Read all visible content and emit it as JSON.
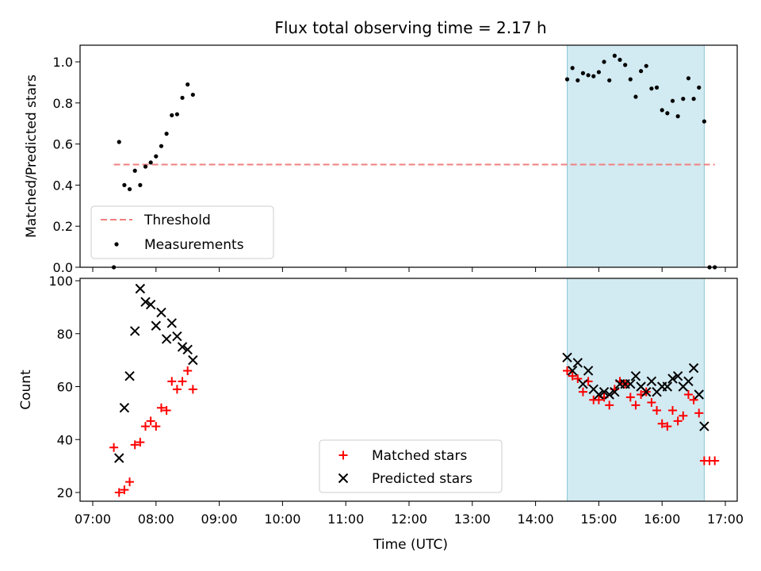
{
  "chart_data": [
    {
      "type": "scatter",
      "title": "Flux total observing time = 2.17 h",
      "ylabel": "Matched/Predicted stars",
      "xlabel": "",
      "xlim": [
        "07:00",
        "17:00"
      ],
      "ylim": [
        0,
        1.08
      ],
      "yticks": [
        "0.0",
        "0.2",
        "0.4",
        "0.6",
        "0.8",
        "1.0"
      ],
      "shaded_region": [
        "14:30",
        "16:40"
      ],
      "threshold": {
        "name": "Threshold",
        "value": 0.5,
        "x_range": [
          "07:20",
          "16:50"
        ],
        "color": "#f08080"
      },
      "series": [
        {
          "name": "Measurements",
          "color": "#000000",
          "points": [
            [
              "07:20",
              0.0
            ],
            [
              "07:25",
              0.61
            ],
            [
              "07:30",
              0.4
            ],
            [
              "07:35",
              0.38
            ],
            [
              "07:40",
              0.47
            ],
            [
              "07:45",
              0.4
            ],
            [
              "07:50",
              0.49
            ],
            [
              "07:55",
              0.51
            ],
            [
              "08:00",
              0.54
            ],
            [
              "08:05",
              0.59
            ],
            [
              "08:10",
              0.65
            ],
            [
              "08:15",
              0.74
            ],
            [
              "08:20",
              0.745
            ],
            [
              "08:25",
              0.825
            ],
            [
              "08:30",
              0.89
            ],
            [
              "08:35",
              0.84
            ],
            [
              "14:30",
              0.915
            ],
            [
              "14:35",
              0.97
            ],
            [
              "14:40",
              0.91
            ],
            [
              "14:45",
              0.945
            ],
            [
              "14:50",
              0.935
            ],
            [
              "14:55",
              0.93
            ],
            [
              "15:00",
              0.95
            ],
            [
              "15:05",
              1.0
            ],
            [
              "15:10",
              0.91
            ],
            [
              "15:15",
              1.03
            ],
            [
              "15:20",
              1.01
            ],
            [
              "15:25",
              0.985
            ],
            [
              "15:30",
              0.915
            ],
            [
              "15:35",
              0.83
            ],
            [
              "15:40",
              0.955
            ],
            [
              "15:45",
              0.98
            ],
            [
              "15:50",
              0.87
            ],
            [
              "15:55",
              0.875
            ],
            [
              "16:00",
              0.765
            ],
            [
              "16:05",
              0.75
            ],
            [
              "16:10",
              0.81
            ],
            [
              "16:15",
              0.735
            ],
            [
              "16:20",
              0.82
            ],
            [
              "16:25",
              0.92
            ],
            [
              "16:30",
              0.82
            ],
            [
              "16:35",
              0.875
            ],
            [
              "16:40",
              0.71
            ],
            [
              "16:45",
              0.0
            ],
            [
              "16:50",
              0.0
            ]
          ]
        }
      ],
      "legend": {
        "placement": "lower-left",
        "entries": [
          "Threshold",
          "Measurements"
        ]
      }
    },
    {
      "type": "scatter",
      "title": "",
      "ylabel": "Count",
      "xlabel": "Time (UTC)",
      "xlim": [
        "07:00",
        "17:00"
      ],
      "ylim": [
        16,
        101
      ],
      "yticks": [
        "20",
        "40",
        "60",
        "80",
        "100"
      ],
      "xticks": [
        "07:00",
        "08:00",
        "09:00",
        "10:00",
        "11:00",
        "12:00",
        "13:00",
        "14:00",
        "15:00",
        "16:00",
        "17:00"
      ],
      "shaded_region": [
        "14:30",
        "16:40"
      ],
      "series": [
        {
          "name": "Matched stars",
          "marker": "plus",
          "color": "#ff0000",
          "points": [
            [
              "07:20",
              37
            ],
            [
              "07:25",
              20
            ],
            [
              "07:30",
              21
            ],
            [
              "07:35",
              24
            ],
            [
              "07:40",
              38
            ],
            [
              "07:45",
              39
            ],
            [
              "07:50",
              45
            ],
            [
              "07:55",
              47
            ],
            [
              "08:00",
              45
            ],
            [
              "08:05",
              52
            ],
            [
              "08:10",
              51
            ],
            [
              "08:15",
              62
            ],
            [
              "08:20",
              59
            ],
            [
              "08:25",
              62
            ],
            [
              "08:30",
              66
            ],
            [
              "08:35",
              59
            ],
            [
              "14:30",
              66
            ],
            [
              "14:35",
              64
            ],
            [
              "14:40",
              63
            ],
            [
              "14:45",
              58
            ],
            [
              "14:50",
              62
            ],
            [
              "14:55",
              55
            ],
            [
              "15:00",
              55
            ],
            [
              "15:05",
              56
            ],
            [
              "15:10",
              53
            ],
            [
              "15:15",
              59
            ],
            [
              "15:20",
              62
            ],
            [
              "15:25",
              61
            ],
            [
              "15:30",
              56
            ],
            [
              "15:35",
              53
            ],
            [
              "15:40",
              57
            ],
            [
              "15:45",
              58
            ],
            [
              "15:50",
              54
            ],
            [
              "15:55",
              51
            ],
            [
              "16:00",
              46
            ],
            [
              "16:05",
              45
            ],
            [
              "16:10",
              51
            ],
            [
              "16:15",
              47
            ],
            [
              "16:20",
              49
            ],
            [
              "16:25",
              57
            ],
            [
              "16:30",
              55
            ],
            [
              "16:35",
              50
            ],
            [
              "16:40",
              32
            ],
            [
              "16:45",
              32
            ],
            [
              "16:50",
              32
            ]
          ]
        },
        {
          "name": "Predicted stars",
          "marker": "x",
          "color": "#000000",
          "points": [
            [
              "07:25",
              33
            ],
            [
              "07:30",
              52
            ],
            [
              "07:35",
              64
            ],
            [
              "07:40",
              81
            ],
            [
              "07:45",
              97
            ],
            [
              "07:50",
              92
            ],
            [
              "07:55",
              91
            ],
            [
              "08:00",
              83
            ],
            [
              "08:05",
              88
            ],
            [
              "08:10",
              78
            ],
            [
              "08:15",
              84
            ],
            [
              "08:20",
              79
            ],
            [
              "08:25",
              75
            ],
            [
              "08:30",
              74
            ],
            [
              "08:35",
              70
            ],
            [
              "14:30",
              71
            ],
            [
              "14:35",
              66
            ],
            [
              "14:40",
              69
            ],
            [
              "14:45",
              61
            ],
            [
              "14:50",
              66
            ],
            [
              "14:55",
              59
            ],
            [
              "15:00",
              57
            ],
            [
              "15:05",
              58
            ],
            [
              "15:10",
              57
            ],
            [
              "15:15",
              58
            ],
            [
              "15:20",
              61
            ],
            [
              "15:25",
              61
            ],
            [
              "15:30",
              61
            ],
            [
              "15:35",
              64
            ],
            [
              "15:40",
              60
            ],
            [
              "15:45",
              58
            ],
            [
              "15:50",
              62
            ],
            [
              "15:55",
              58
            ],
            [
              "16:00",
              60
            ],
            [
              "16:05",
              60
            ],
            [
              "16:10",
              63
            ],
            [
              "16:15",
              64
            ],
            [
              "16:20",
              60
            ],
            [
              "16:25",
              62
            ],
            [
              "16:30",
              67
            ],
            [
              "16:35",
              57
            ],
            [
              "16:40",
              45
            ]
          ]
        }
      ],
      "legend": {
        "placement": "lower-center",
        "entries": [
          "Matched stars",
          "Predicted stars"
        ]
      }
    }
  ],
  "colors": {
    "shade": "#add8e6",
    "threshold": "#f08080",
    "matched": "#ff0000",
    "predicted": "#000000"
  }
}
